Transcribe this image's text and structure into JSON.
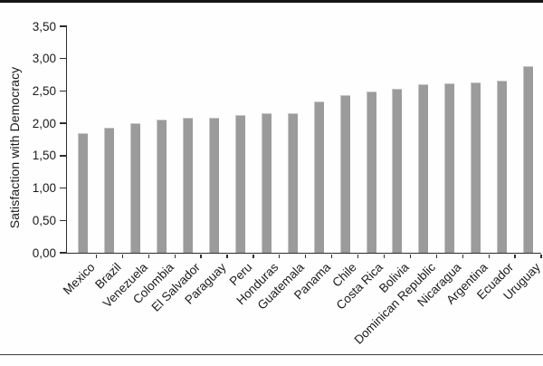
{
  "page": {
    "background": "#fefefe",
    "top_rule_color": "#141414",
    "bottom_rule_color": "#3c3c3c"
  },
  "chart_data": {
    "type": "bar",
    "title": "",
    "xlabel": "",
    "ylabel": "Satisfaction with Democracy",
    "ylim": [
      0,
      3.5
    ],
    "ytick_interval": 0.5,
    "ytick_labels": [
      "0,00",
      "0,50",
      "1,00",
      "1,50",
      "2,00",
      "2,50",
      "3,00",
      "3,50"
    ],
    "decimal_separator": ",",
    "grid": false,
    "legend": false,
    "x_tick_style": "category-boundaries",
    "bar_color": "#9b9b9b",
    "bar_edge_color": "#c6c6c6",
    "axis_color": "#2e2e2e",
    "text_color": "#1a1a1a",
    "categories": [
      "Mexico",
      "Brazil",
      "Venezuela",
      "Colombia",
      "El Salvador",
      "Paraguay",
      "Peru",
      "Honduras",
      "Guatemala",
      "Panama",
      "Chile",
      "Costa Rica",
      "Bolivia",
      "Dominican Republic",
      "Nicaragua",
      "Argentina",
      "Ecuador",
      "Uruguay"
    ],
    "values": [
      1.85,
      1.93,
      2.0,
      2.06,
      2.08,
      2.09,
      2.13,
      2.16,
      2.16,
      2.34,
      2.43,
      2.49,
      2.54,
      2.6,
      2.62,
      2.63,
      2.66,
      2.89
    ]
  }
}
